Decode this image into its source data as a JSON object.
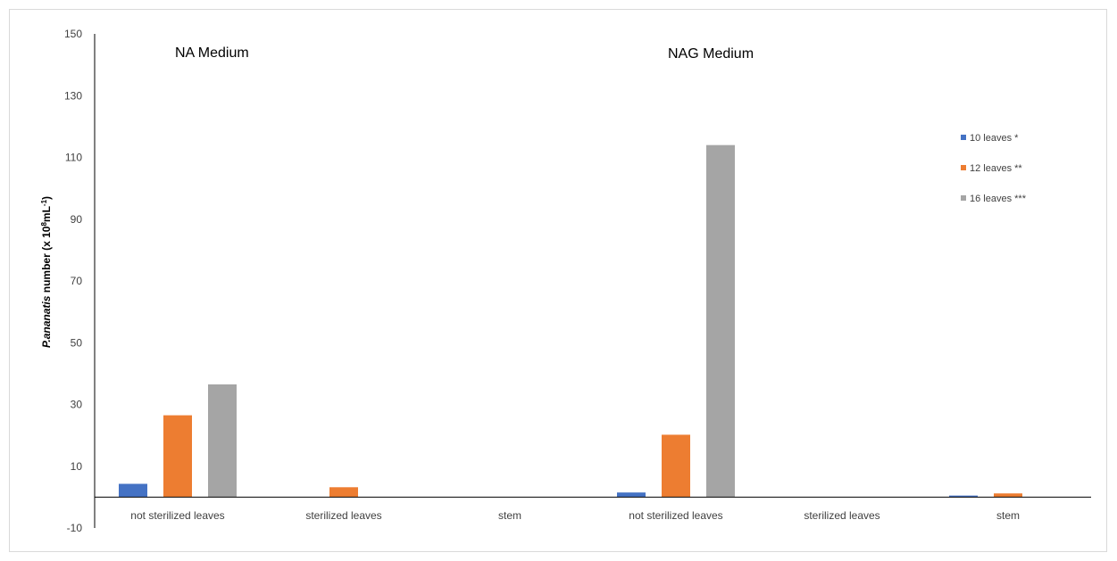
{
  "chart_data": {
    "type": "bar",
    "categories": [
      "not sterilized leaves",
      "sterilized leaves",
      "stem",
      "not sterilized leaves",
      "sterilized leaves",
      "stem"
    ],
    "series": [
      {
        "name": "10 leaves *",
        "values": [
          4.3,
          0,
          0,
          1.5,
          0,
          0.5
        ]
      },
      {
        "name": "12 leaves **",
        "values": [
          26.5,
          3.2,
          0,
          20.2,
          0,
          1.2
        ]
      },
      {
        "name": "16 leaves ***",
        "values": [
          36.5,
          0,
          0,
          114,
          0,
          0
        ]
      }
    ],
    "colors": [
      "#4472c4",
      "#ed7d31",
      "#a5a5a5"
    ],
    "panel_labels": [
      "NA Medium",
      "NAG Medium"
    ],
    "ylabel": {
      "italic": "P.ananatis",
      "text": " number (x 10",
      "sup1": "8",
      "unit": "mL",
      "sup2": "-1",
      "close": ")"
    },
    "yticks": [
      150,
      130,
      110,
      90,
      70,
      50,
      30,
      10,
      -10
    ],
    "ylim": [
      -10,
      150
    ],
    "legend_position": "right",
    "grid": false
  }
}
